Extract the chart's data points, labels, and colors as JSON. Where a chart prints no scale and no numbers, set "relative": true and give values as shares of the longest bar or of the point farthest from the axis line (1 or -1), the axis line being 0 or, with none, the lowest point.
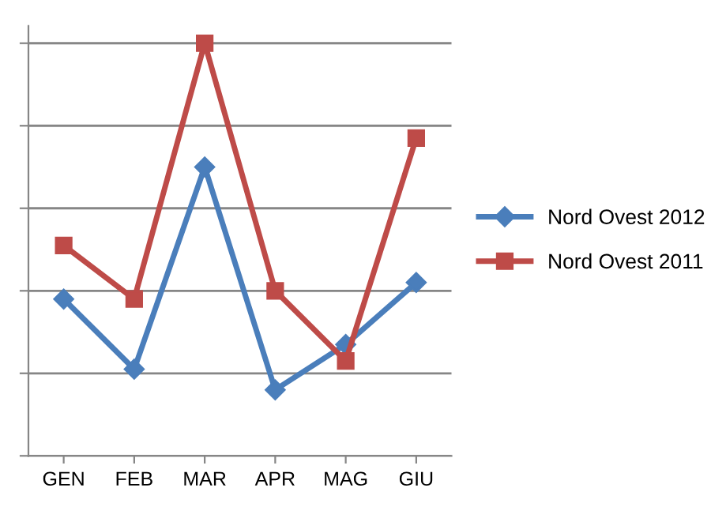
{
  "chart_data": {
    "type": "line",
    "relative": true,
    "categories": [
      "GEN",
      "FEB",
      "MAR",
      "APR",
      "MAG",
      "GIU"
    ],
    "series": [
      {
        "name": "Nord Ovest 2012",
        "color": "#4a7ebb",
        "marker": "diamond",
        "values": [
          0.38,
          0.21,
          0.7,
          0.16,
          0.27,
          0.42
        ]
      },
      {
        "name": "Nord Ovest 2011",
        "color": "#be4b48",
        "marker": "square",
        "values": [
          0.51,
          0.38,
          1.0,
          0.4,
          0.23,
          0.77
        ]
      }
    ],
    "grid": "y",
    "legend": "right",
    "line_style": "solid"
  }
}
